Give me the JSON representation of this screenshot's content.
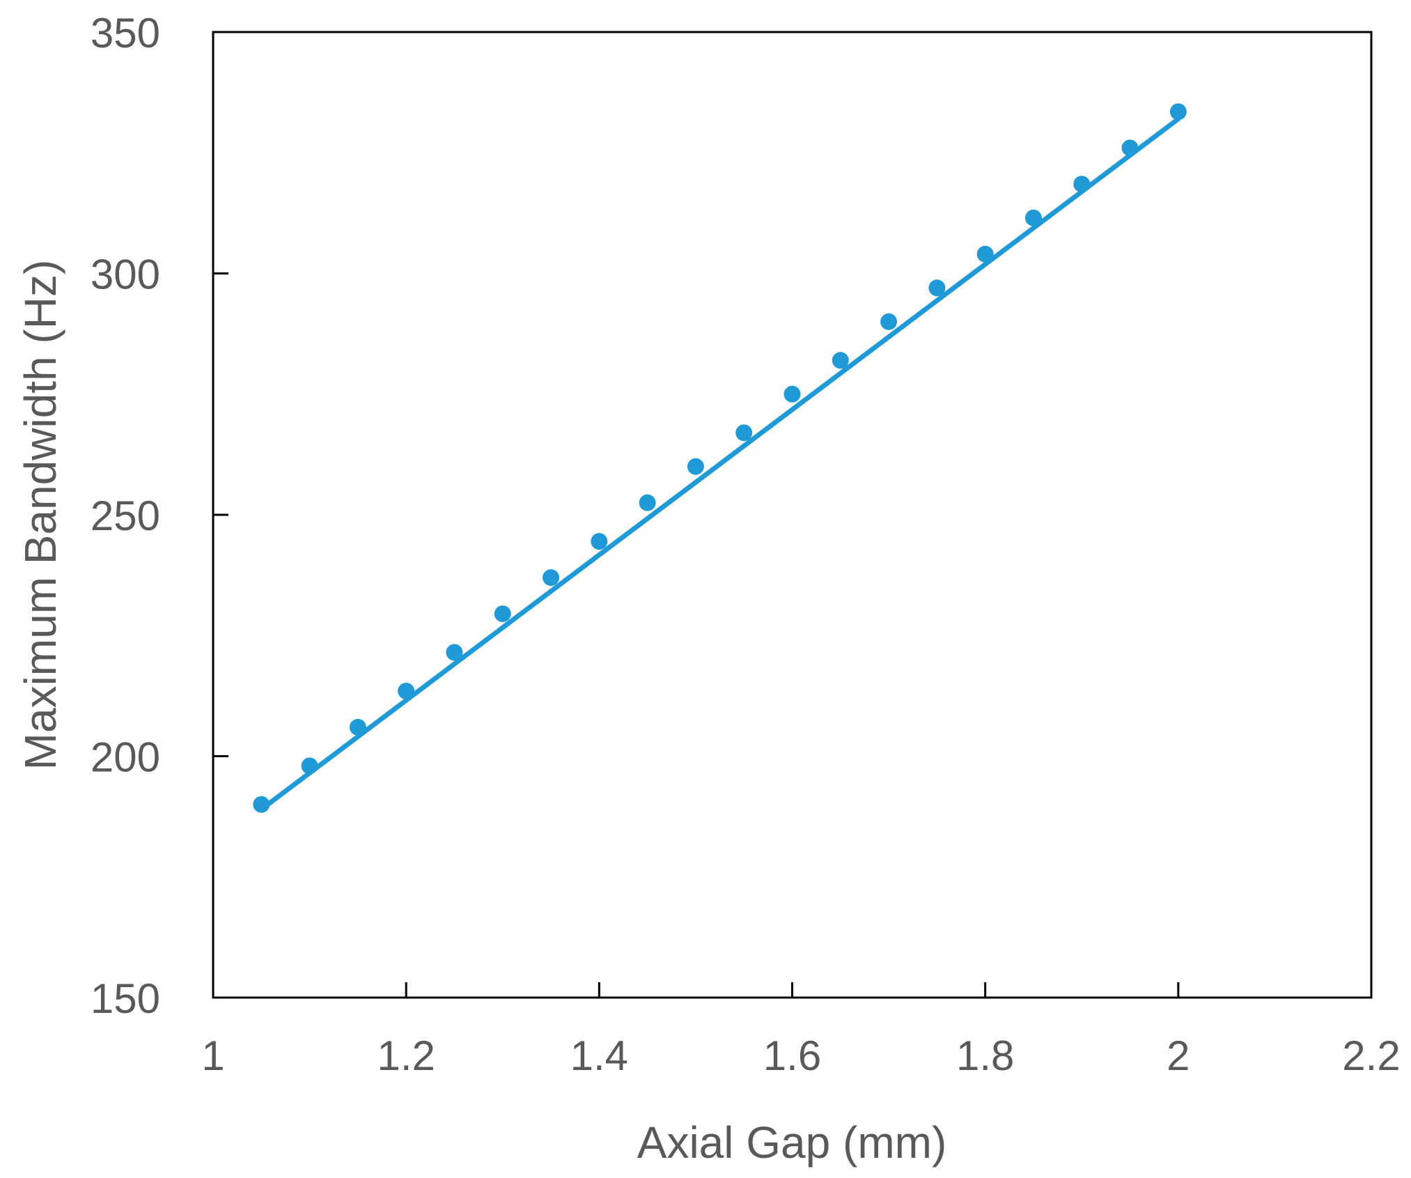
{
  "chart_data": {
    "type": "scatter",
    "title": "",
    "xlabel": "Axial Gap (mm)",
    "ylabel": "Maximum Bandwidth (Hz)",
    "xlim": [
      1,
      2.2
    ],
    "ylim": [
      150,
      350
    ],
    "x_ticks": [
      "1",
      "1.2",
      "1.4",
      "1.6",
      "1.8",
      "2",
      "2.2"
    ],
    "y_ticks": [
      "150",
      "200",
      "250",
      "300",
      "350"
    ],
    "grid": false,
    "legend": "none",
    "colors": {
      "series": "#1f9ad6",
      "axis": "#000000",
      "text": "#595959"
    },
    "series": [
      {
        "kind": "points",
        "x": [
          1.05,
          1.1,
          1.15,
          1.2,
          1.25,
          1.3,
          1.35,
          1.4,
          1.45,
          1.5,
          1.55,
          1.6,
          1.65,
          1.7,
          1.75,
          1.8,
          1.85,
          1.9,
          1.95,
          2.0
        ],
        "y": [
          190,
          198,
          206,
          213.5,
          221.5,
          229.5,
          237,
          244.5,
          252.5,
          260,
          267,
          275,
          282,
          290,
          297,
          304,
          311.5,
          318.5,
          326,
          333.5
        ]
      },
      {
        "kind": "line",
        "x": [
          1.05,
          2.0
        ],
        "y": [
          189,
          332
        ]
      }
    ]
  }
}
